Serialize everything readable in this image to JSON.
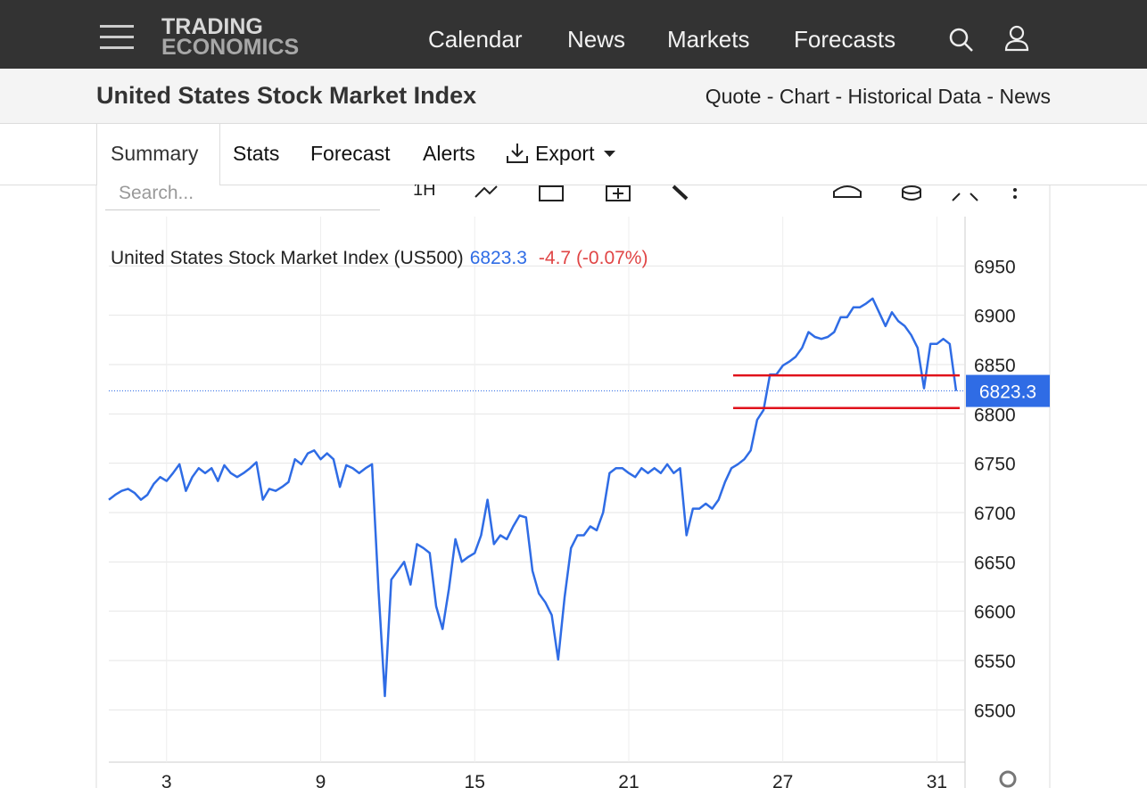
{
  "header": {
    "logo_top": "TRADING",
    "logo_bottom": "ECONOMICS",
    "nav": [
      "Calendar",
      "News",
      "Markets",
      "Forecasts"
    ]
  },
  "subheader": {
    "title": "United States Stock Market Index",
    "links": "Quote - Chart - Historical Data - News"
  },
  "tabs": [
    "Summary",
    "Stats",
    "Forecast",
    "Alerts",
    "Export"
  ],
  "search_placeholder": "Search...",
  "toolbar_interval": "1H",
  "chart_data": {
    "type": "line",
    "title": "United States Stock Market Index (US500)",
    "last_price": 6823.3,
    "change": "-4.7 (-0.07%)",
    "categories": [
      null,
      null,
      null,
      null,
      null,
      null,
      null,
      null,
      null,
      "3",
      null,
      null,
      null,
      null,
      null,
      null,
      null,
      null,
      null,
      null,
      null,
      null,
      null,
      null,
      null,
      null,
      null,
      null,
      null,
      null,
      null,
      null,
      null,
      "9",
      null,
      null,
      null,
      null,
      null,
      null,
      null,
      null,
      null,
      null,
      null,
      null,
      null,
      null,
      null,
      null,
      null,
      null,
      null,
      null,
      null,
      null,
      null,
      "15",
      null,
      null,
      null,
      null,
      null,
      null,
      null,
      null,
      null,
      null,
      null,
      null,
      null,
      null,
      null,
      null,
      null,
      null,
      null,
      null,
      null,
      null,
      null,
      "21",
      null,
      null,
      null,
      null,
      null,
      null,
      null,
      null,
      null,
      null,
      null,
      null,
      null,
      null,
      null,
      null,
      null,
      null,
      null,
      null,
      null,
      null,
      null,
      "27",
      null,
      null,
      null,
      null,
      null,
      null,
      null,
      null,
      null,
      null,
      null,
      null,
      null,
      null,
      null,
      null,
      null,
      null,
      null,
      null,
      null,
      null,
      null,
      "31",
      null,
      null,
      null
    ],
    "series": [
      {
        "name": "US500",
        "color": "#2f6ce5",
        "values": [
          6713,
          6718,
          6722,
          6724,
          6720,
          6713,
          6718,
          6729,
          6736,
          6732,
          6740,
          6749,
          6722,
          6736,
          6745,
          6740,
          6745,
          6732,
          6748,
          6740,
          6736,
          6740,
          6745,
          6751,
          6713,
          6724,
          6722,
          6726,
          6731,
          6754,
          6749,
          6760,
          6763,
          6754,
          6760,
          6754,
          6726,
          6748,
          6745,
          6740,
          6745,
          6749,
          6623,
          6514,
          6632,
          6641,
          6650,
          6627,
          6668,
          6664,
          6659,
          6605,
          6582,
          6623,
          6673,
          6650,
          6655,
          6659,
          6677,
          6713,
          6668,
          6677,
          6673,
          6686,
          6697,
          6695,
          6641,
          6618,
          6609,
          6596,
          6551,
          6614,
          6664,
          6677,
          6677,
          6686,
          6682,
          6700,
          6740,
          6745,
          6745,
          6740,
          6736,
          6745,
          6740,
          6745,
          6740,
          6749,
          6740,
          6745,
          6677,
          6704,
          6704,
          6709,
          6704,
          6713,
          6731,
          6745,
          6749,
          6754,
          6763,
          6794,
          6804,
          6840,
          6840,
          6849,
          6853,
          6858,
          6867,
          6883,
          6878,
          6876,
          6878,
          6883,
          6898,
          6898,
          6908,
          6908,
          6912,
          6917,
          6903,
          6889,
          6903,
          6894,
          6889,
          6880,
          6867,
          6826,
          6871,
          6871,
          6876,
          6871,
          6823.3
        ]
      }
    ],
    "hlines": {
      "color": "#e0121b",
      "values": [
        6839,
        6806
      ]
    },
    "ylim": [
      6447,
      7000
    ],
    "yticks": [
      6500,
      6550,
      6600,
      6650,
      6700,
      6750,
      6800,
      6850,
      6900,
      6950
    ],
    "grid": true
  }
}
